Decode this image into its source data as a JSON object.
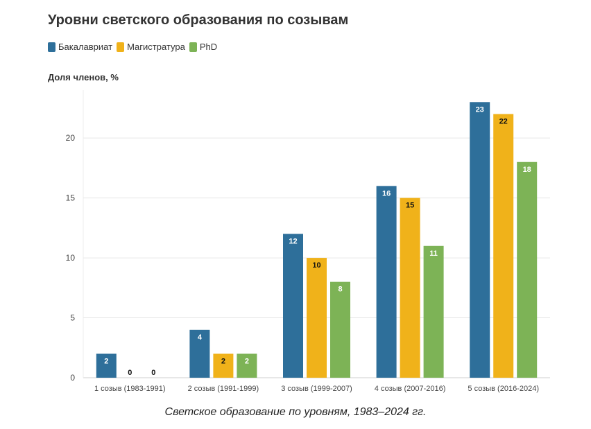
{
  "chart_data": {
    "type": "bar",
    "title": "Уровни светского образования по созывам",
    "ylabel": "Доля членов, %",
    "xlabel": "",
    "caption": "Светское образование по уровням, 1983–2024 гг.",
    "categories": [
      "1 созыв (1983-1991)",
      "2 созыв (1991-1999)",
      "3 созыв (1999-2007)",
      "4 созыв (2007-2016)",
      "5 созыв (2016-2024)"
    ],
    "series": [
      {
        "name": "Бакалавриат",
        "color": "#2e6f9a",
        "label_color": "#ffffff",
        "values": [
          2,
          4,
          12,
          16,
          23
        ]
      },
      {
        "name": "Магистратура",
        "color": "#f0b21a",
        "label_color": "#111111",
        "values": [
          0,
          2,
          10,
          15,
          22
        ]
      },
      {
        "name": "PhD",
        "color": "#7db356",
        "label_color": "#ffffff",
        "values": [
          0,
          2,
          8,
          11,
          18
        ]
      }
    ],
    "ylim": [
      0,
      24
    ],
    "yticks": [
      0,
      5,
      10,
      15,
      20
    ],
    "grid": true,
    "legend_position": "top-left"
  }
}
